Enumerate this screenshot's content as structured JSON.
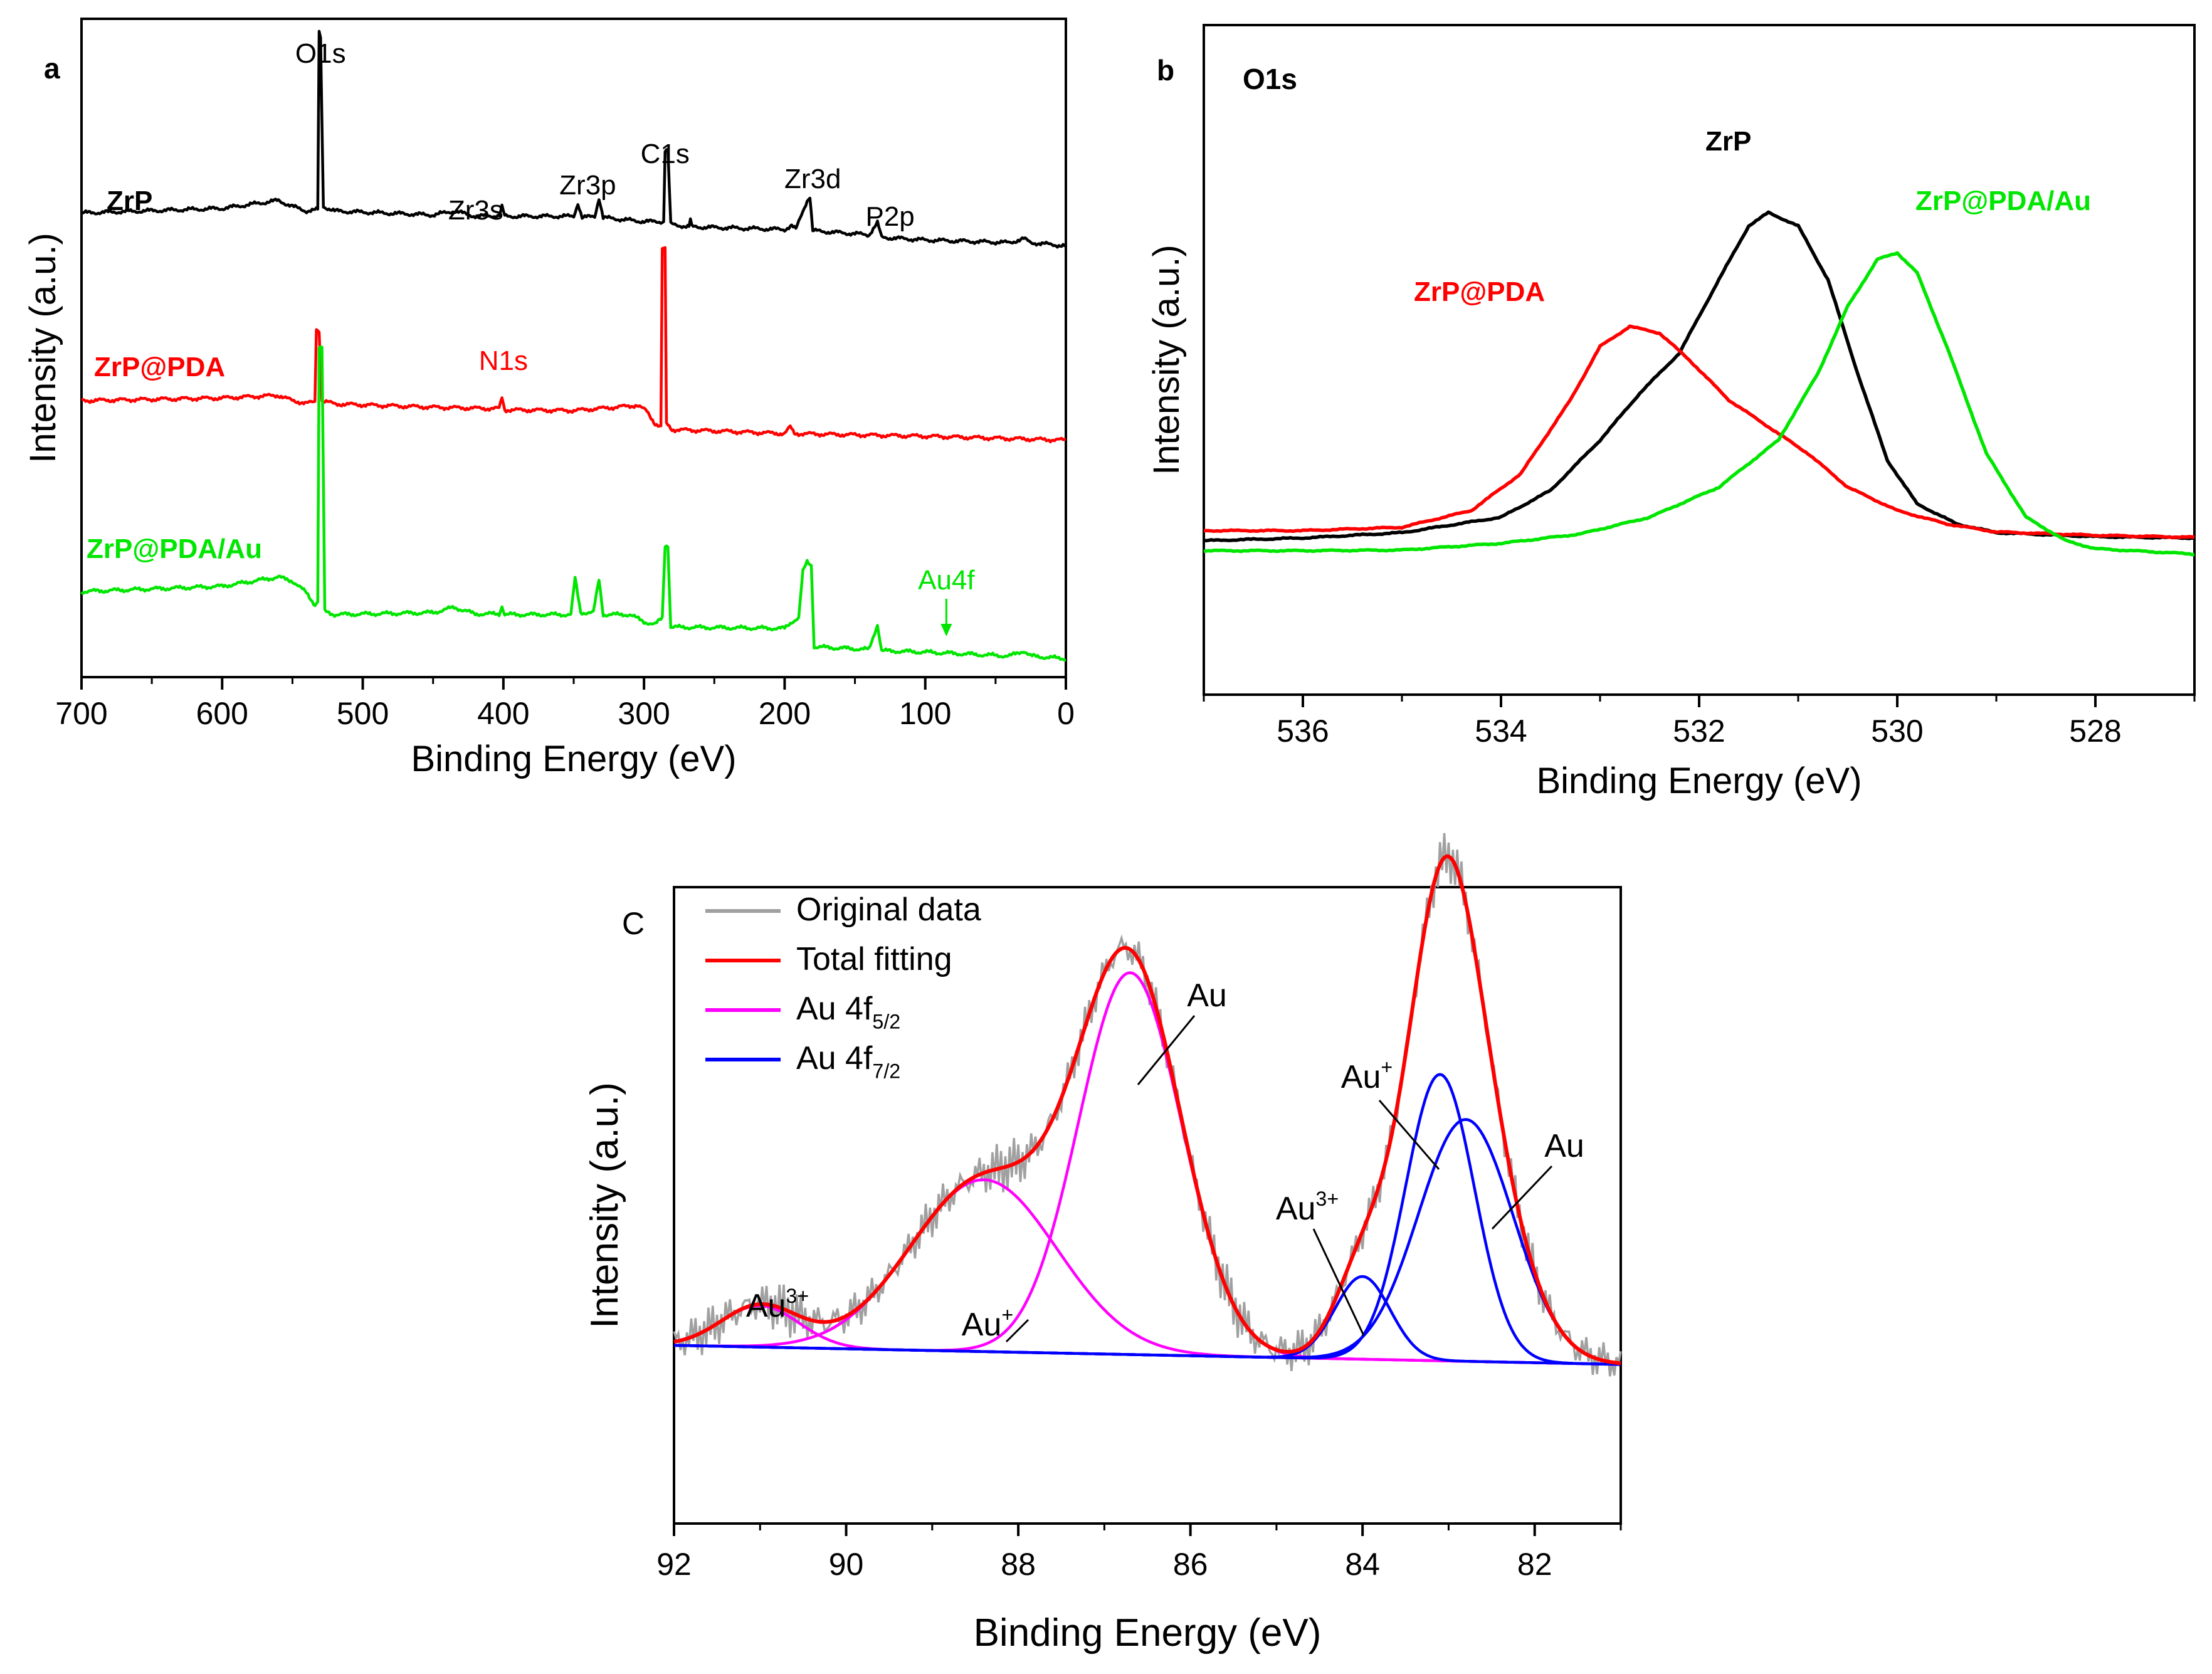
{
  "colors": {
    "zrp": "#000000",
    "zrp_pda": "#ff0000",
    "zrp_pda_au": "#00e600",
    "original": "#a0a0a0",
    "total": "#ff0000",
    "au52": "#ff00ff",
    "au72": "#0000ff"
  },
  "chart_data": [
    {
      "panel_label": "a",
      "type": "line",
      "title": "",
      "xlabel": "Binding Energy (eV)",
      "ylabel": "Intensity (a.u.)",
      "xlim": [
        700,
        0
      ],
      "ylim": [
        0,
        100
      ],
      "xticks": [
        700,
        600,
        500,
        400,
        300,
        200,
        100,
        0
      ],
      "series": [
        {
          "name": "ZrP",
          "color": "#000000",
          "points": [
            [
              700,
              70.5
            ],
            [
              600,
              71.2
            ],
            [
              560,
              72.4
            ],
            [
              550,
              71.5
            ],
            [
              540,
              70.8
            ],
            [
              532,
              71.0
            ],
            [
              531,
              98.0
            ],
            [
              530,
              97.0
            ],
            [
              528,
              71.5
            ],
            [
              520,
              70.8
            ],
            [
              450,
              70.2
            ],
            [
              435,
              70.8
            ],
            [
              420,
              70.0
            ],
            [
              403,
              70.1
            ],
            [
              401,
              71.4
            ],
            [
              399,
              70.0
            ],
            [
              350,
              70.0
            ],
            [
              347,
              72.0
            ],
            [
              344,
              69.8
            ],
            [
              335,
              70.0
            ],
            [
              332,
              72.8
            ],
            [
              329,
              69.8
            ],
            [
              300,
              69.2
            ],
            [
              286,
              69.2
            ],
            [
              285,
              80.0
            ],
            [
              283,
              80.0
            ],
            [
              281,
              68.8
            ],
            [
              268,
              68.4
            ],
            [
              267,
              69.5
            ],
            [
              266,
              68.4
            ],
            [
              200,
              68.0
            ],
            [
              195,
              68.6
            ],
            [
              192,
              68.0
            ],
            [
              187,
              70.8
            ],
            [
              184,
              72.4
            ],
            [
              182,
              73.0
            ],
            [
              180,
              67.8
            ],
            [
              140,
              67.2
            ],
            [
              134,
              69.0
            ],
            [
              131,
              66.8
            ],
            [
              100,
              66.4
            ],
            [
              40,
              66.0
            ],
            [
              30,
              66.6
            ],
            [
              25,
              66.0
            ],
            [
              0,
              65.5
            ]
          ]
        },
        {
          "name": "ZrP@PDA",
          "color": "#ff0000",
          "points": [
            [
              700,
              42.0
            ],
            [
              600,
              42.4
            ],
            [
              560,
              42.8
            ],
            [
              550,
              42.0
            ],
            [
              540,
              41.6
            ],
            [
              534,
              41.8
            ],
            [
              533,
              53.0
            ],
            [
              531,
              52.5
            ],
            [
              529,
              42.0
            ],
            [
              520,
              41.5
            ],
            [
              450,
              41.0
            ],
            [
              410,
              40.8
            ],
            [
              403,
              40.8
            ],
            [
              401,
              42.5
            ],
            [
              399,
              40.6
            ],
            [
              350,
              40.5
            ],
            [
              320,
              41.0
            ],
            [
              305,
              41.3
            ],
            [
              298,
              40.4
            ],
            [
              292,
              38.5
            ],
            [
              288,
              38.0
            ],
            [
              287,
              65.0
            ],
            [
              285,
              65.0
            ],
            [
              284,
              38.5
            ],
            [
              280,
              37.6
            ],
            [
              250,
              37.4
            ],
            [
              200,
              37.0
            ],
            [
              196,
              38.0
            ],
            [
              193,
              37.0
            ],
            [
              150,
              36.8
            ],
            [
              100,
              36.6
            ],
            [
              0,
              36.0
            ]
          ]
        },
        {
          "name": "ZrP@PDA/Au",
          "color": "#00e600",
          "points": [
            [
              700,
              13.0
            ],
            [
              600,
              13.8
            ],
            [
              560,
              15.2
            ],
            [
              550,
              14.6
            ],
            [
              540,
              12.8
            ],
            [
              534,
              11.0
            ],
            [
              532,
              11.5
            ],
            [
              531,
              50.0
            ],
            [
              529,
              50.0
            ],
            [
              527,
              10.0
            ],
            [
              520,
              9.5
            ],
            [
              450,
              9.8
            ],
            [
              435,
              10.6
            ],
            [
              420,
              9.6
            ],
            [
              403,
              9.6
            ],
            [
              401,
              10.8
            ],
            [
              399,
              9.5
            ],
            [
              352,
              9.5
            ],
            [
              349,
              15.0
            ],
            [
              345,
              9.8
            ],
            [
              336,
              9.8
            ],
            [
              332,
              14.8
            ],
            [
              329,
              9.5
            ],
            [
              310,
              9.5
            ],
            [
              300,
              8.4
            ],
            [
              292,
              8.0
            ],
            [
              287,
              9.0
            ],
            [
              285,
              20.0
            ],
            [
              283,
              20.0
            ],
            [
              281,
              7.6
            ],
            [
              200,
              7.4
            ],
            [
              195,
              8.4
            ],
            [
              190,
              9.0
            ],
            [
              187,
              16.0
            ],
            [
              184,
              17.5
            ],
            [
              181,
              17.0
            ],
            [
              179,
              4.6
            ],
            [
              140,
              4.2
            ],
            [
              134,
              8.0
            ],
            [
              131,
              4.0
            ],
            [
              100,
              3.8
            ],
            [
              40,
              3.2
            ],
            [
              30,
              4.0
            ],
            [
              25,
              3.2
            ],
            [
              0,
              2.8
            ]
          ]
        }
      ],
      "curve_labels": [
        "ZrP",
        "ZrP@PDA",
        "ZrP@PDA/Au"
      ],
      "annotations": [
        {
          "text": "O1s",
          "x": 530
        },
        {
          "text": "Zr3s",
          "x": 433
        },
        {
          "text": "Zr3p",
          "x": 333
        },
        {
          "text": "C1s",
          "x": 285
        },
        {
          "text": "Zr3d",
          "x": 183
        },
        {
          "text": "P2p",
          "x": 134
        },
        {
          "text": "N1s",
          "x": 400
        },
        {
          "text": "Au4f",
          "x": 85
        }
      ]
    },
    {
      "panel_label": "b",
      "type": "line",
      "title": "O1s",
      "xlabel": "Binding Energy (eV)",
      "ylabel": "Intensity (a.u.)",
      "xlim": [
        537,
        527
      ],
      "ylim": [
        0,
        100
      ],
      "xticks": [
        536,
        534,
        532,
        530,
        528
      ],
      "series": [
        {
          "name": "ZrP",
          "color": "#000000",
          "points": [
            [
              537,
              23.0
            ],
            [
              536,
              23.4
            ],
            [
              535,
              24.2
            ],
            [
              534,
              26.5
            ],
            [
              533.5,
              30.5
            ],
            [
              533,
              38.0
            ],
            [
              532.6,
              45.0
            ],
            [
              532.2,
              51.0
            ],
            [
              531.8,
              62.0
            ],
            [
              531.5,
              70.0
            ],
            [
              531.3,
              72.0
            ],
            [
              531.0,
              70.0
            ],
            [
              530.7,
              62.0
            ],
            [
              530.4,
              48.0
            ],
            [
              530.1,
              35.0
            ],
            [
              529.8,
              28.5
            ],
            [
              529.4,
              25.5
            ],
            [
              529,
              24.2
            ],
            [
              528,
              23.6
            ],
            [
              527,
              23.4
            ]
          ]
        },
        {
          "name": "ZrP@PDA",
          "color": "#ff0000",
          "points": [
            [
              537,
              24.5
            ],
            [
              536,
              24.5
            ],
            [
              535,
              25.0
            ],
            [
              534.3,
              27.5
            ],
            [
              533.8,
              33.0
            ],
            [
              533.3,
              44.0
            ],
            [
              533.0,
              52.0
            ],
            [
              532.7,
              55.0
            ],
            [
              532.4,
              54.0
            ],
            [
              532.1,
              50.0
            ],
            [
              531.7,
              44.0
            ],
            [
              531.3,
              40.0
            ],
            [
              530.9,
              36.0
            ],
            [
              530.5,
              31.0
            ],
            [
              530.0,
              27.5
            ],
            [
              529.5,
              25.5
            ],
            [
              529,
              24.3
            ],
            [
              528,
              23.8
            ],
            [
              527,
              23.5
            ]
          ]
        },
        {
          "name": "ZrP@PDA/Au",
          "color": "#00e600",
          "points": [
            [
              537,
              21.5
            ],
            [
              536,
              21.5
            ],
            [
              535,
              21.6
            ],
            [
              534,
              22.6
            ],
            [
              533.2,
              24.0
            ],
            [
              532.5,
              26.5
            ],
            [
              531.8,
              31.0
            ],
            [
              531.2,
              38.0
            ],
            [
              530.8,
              48.0
            ],
            [
              530.5,
              58.0
            ],
            [
              530.2,
              65.0
            ],
            [
              530.0,
              66.0
            ],
            [
              529.8,
              63.0
            ],
            [
              529.5,
              52.0
            ],
            [
              529.1,
              36.0
            ],
            [
              528.7,
              26.5
            ],
            [
              528.3,
              23.0
            ],
            [
              528,
              21.8
            ],
            [
              527,
              21.0
            ]
          ]
        }
      ],
      "curve_labels": [
        "ZrP",
        "ZrP@PDA",
        "ZrP@PDA/Au"
      ]
    },
    {
      "panel_label": "C",
      "type": "line",
      "title": "",
      "xlabel": "Binding Energy (eV)",
      "ylabel": "Intensity (a.u.)",
      "xlim": [
        92,
        81
      ],
      "ylim": [
        0,
        100
      ],
      "xticks": [
        92,
        90,
        88,
        86,
        84,
        82
      ],
      "background": {
        "start": 28,
        "end": 25
      },
      "components": [
        {
          "name": "Au 4f5/2",
          "color": "#ff00ff",
          "peaks": [
            {
              "center": 86.7,
              "height": 60,
              "sigma": 0.6
            },
            {
              "center": 88.4,
              "height": 27,
              "sigma": 0.85
            },
            {
              "center": 91.0,
              "height": 6.5,
              "sigma": 0.45
            }
          ]
        },
        {
          "name": "Au 4f7/2",
          "color": "#0000ff",
          "peaks": [
            {
              "center": 82.8,
              "height": 38,
              "sigma": 0.55
            },
            {
              "center": 83.1,
              "height": 45,
              "sigma": 0.4
            },
            {
              "center": 84.0,
              "height": 13,
              "sigma": 0.32
            }
          ]
        }
      ],
      "legend": [
        "Original data",
        "Total fitting",
        "Au 4f",
        "Au 4f"
      ],
      "legend_sub": [
        "5/2",
        "7/2"
      ],
      "peak_labels": [
        "Au",
        "Au",
        "Au",
        "Au",
        "Au",
        "Au"
      ],
      "peak_label_sup": [
        "3+",
        "+",
        "",
        "3+",
        "+",
        ""
      ],
      "peak_label_x": [
        91.0,
        88.3,
        86.7,
        84.0,
        83.1,
        82.8
      ]
    }
  ]
}
